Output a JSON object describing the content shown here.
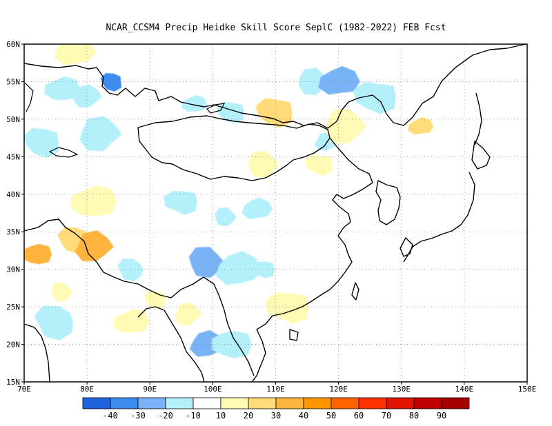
{
  "title": "NCAR_CCSM4 Precip Heidke Skill Score SeplC (1982-2022) FEB Fcst",
  "map": {
    "lat_labels": [
      "60N",
      "55N",
      "50N",
      "45N",
      "40N",
      "35N",
      "30N",
      "25N",
      "20N",
      "15N"
    ],
    "lon_labels": [
      "70E",
      "80E",
      "90E",
      "100E",
      "110E",
      "120E",
      "130E",
      "140E",
      "150E"
    ],
    "lat_range": [
      15,
      60
    ],
    "lon_range": [
      70,
      150
    ],
    "gridlines": "dotted"
  },
  "colorbar": {
    "colors": [
      "#1e63dc",
      "#3c8cf0",
      "#78b4f5",
      "#b4f0fa",
      "#ffffff",
      "#fffab4",
      "#ffdc78",
      "#ffb43c",
      "#ff9600",
      "#ff6400",
      "#ff3200",
      "#e11400",
      "#c00000",
      "#a50000"
    ],
    "labels": [
      "-40",
      "-30",
      "-20",
      "-10",
      "10",
      "20",
      "30",
      "40",
      "50",
      "60",
      "70",
      "80",
      "90"
    ]
  },
  "chart_data": {
    "type": "heatmap",
    "title": "NCAR_CCSM4 Precip Heidke Skill Score SeplC (1982-2022) FEB Fcst",
    "x_range": [
      70,
      150
    ],
    "y_range": [
      15,
      60
    ],
    "x_ticks": [
      "70E",
      "80E",
      "90E",
      "100E",
      "110E",
      "120E",
      "130E",
      "140E",
      "150E"
    ],
    "y_ticks": [
      "15N",
      "20N",
      "25N",
      "30N",
      "35N",
      "40N",
      "45N",
      "50N",
      "55N",
      "60N"
    ],
    "colorbar_levels": [
      -40,
      -30,
      -20,
      -10,
      10,
      20,
      30,
      40,
      50,
      60,
      70,
      80,
      90
    ],
    "patches": [
      {
        "lon": 84,
        "lat": 55,
        "value": -35
      },
      {
        "lon": 80,
        "lat": 53,
        "value": -15
      },
      {
        "lon": 76,
        "lat": 54,
        "value": -15
      },
      {
        "lon": 73,
        "lat": 47,
        "value": -15
      },
      {
        "lon": 82,
        "lat": 48,
        "value": -15
      },
      {
        "lon": 97,
        "lat": 52,
        "value": -15
      },
      {
        "lon": 103,
        "lat": 51,
        "value": -15
      },
      {
        "lon": 116,
        "lat": 55,
        "value": -15
      },
      {
        "lon": 120,
        "lat": 55,
        "value": -25
      },
      {
        "lon": 126,
        "lat": 53,
        "value": -15
      },
      {
        "lon": 102,
        "lat": 37,
        "value": -15
      },
      {
        "lon": 107,
        "lat": 38,
        "value": -15
      },
      {
        "lon": 95,
        "lat": 39,
        "value": -15
      },
      {
        "lon": 99,
        "lat": 31,
        "value": -25
      },
      {
        "lon": 104,
        "lat": 30,
        "value": -15
      },
      {
        "lon": 108,
        "lat": 30,
        "value": -15
      },
      {
        "lon": 87,
        "lat": 30,
        "value": -15
      },
      {
        "lon": 99,
        "lat": 20,
        "value": -25
      },
      {
        "lon": 103,
        "lat": 20,
        "value": -15
      },
      {
        "lon": 75,
        "lat": 23,
        "value": -15
      },
      {
        "lon": 118,
        "lat": 47,
        "value": -15
      },
      {
        "lon": 72,
        "lat": 32,
        "value": 35
      },
      {
        "lon": 78,
        "lat": 34,
        "value": 25
      },
      {
        "lon": 81,
        "lat": 33,
        "value": 35
      },
      {
        "lon": 81,
        "lat": 39,
        "value": 15
      },
      {
        "lon": 91,
        "lat": 26,
        "value": 15
      },
      {
        "lon": 96,
        "lat": 24,
        "value": 15
      },
      {
        "lon": 87,
        "lat": 23,
        "value": 15
      },
      {
        "lon": 110,
        "lat": 51,
        "value": 20
      },
      {
        "lon": 121,
        "lat": 49,
        "value": 15
      },
      {
        "lon": 133,
        "lat": 49,
        "value": 20
      },
      {
        "lon": 117,
        "lat": 44,
        "value": 15
      },
      {
        "lon": 108,
        "lat": 44,
        "value": 15
      },
      {
        "lon": 78,
        "lat": 59,
        "value": 15
      },
      {
        "lon": 112,
        "lat": 25,
        "value": 15
      },
      {
        "lon": 76,
        "lat": 27,
        "value": 15
      }
    ]
  }
}
